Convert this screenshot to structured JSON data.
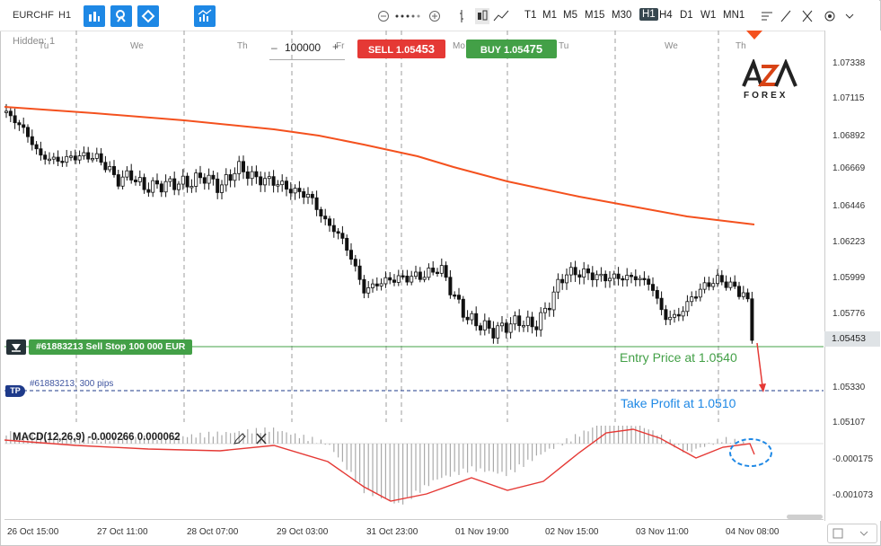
{
  "toolbar": {
    "symbol": "EURCHF",
    "timeframe": "H1",
    "timeframes": [
      "T1",
      "M1",
      "M5",
      "M15",
      "M30",
      "H1",
      "H4",
      "D1",
      "W1",
      "MN1"
    ],
    "active_timeframe": "H1"
  },
  "chart": {
    "hidden_label": "Hidden: 1",
    "quantity": "100000",
    "sell_label": "SELL 1.05",
    "sell_big": "453",
    "buy_label": "BUY 1.05",
    "buy_big": "475",
    "day_labels": [
      "Tu",
      "We",
      "Th",
      "Fr",
      "Mo",
      "Tu",
      "We",
      "Th"
    ],
    "price_labels": [
      "1.07338",
      "1.07115",
      "1.06892",
      "1.06669",
      "1.06446",
      "1.06223",
      "1.05999",
      "1.05776",
      "1.05453",
      "1.05330",
      "1.05107"
    ],
    "current_price": "1.05453",
    "order_label": "#61883213 Sell Stop 100 000 EUR",
    "tp_badge": "TP",
    "tp_label": "#61883213, 300 pips",
    "entry_annotation": "Entry Price at 1.0540",
    "tp_annotation": "Take Profit at 1.0510",
    "logo_top": "AZA",
    "logo_bottom": "FOREX",
    "colors": {
      "ma": "#f4511e",
      "entry": "#43a047",
      "tp": "#1e88e5",
      "sell": "#e53935",
      "buy": "#43a047",
      "macd_signal": "#e53935",
      "arrow": "#e53935"
    }
  },
  "macd": {
    "title": "MACD(12,26,9) -0.000266 0.000062",
    "axis_labels": [
      "-0.000175",
      "-0.001073"
    ]
  },
  "time_axis": [
    "26 Oct 15:00",
    "27 Oct 11:00",
    "28 Oct 07:00",
    "29 Oct 03:00",
    "31 Oct 23:00",
    "01 Nov 19:00",
    "02 Nov 15:00",
    "03 Nov 11:00",
    "04 Nov 08:00"
  ]
}
